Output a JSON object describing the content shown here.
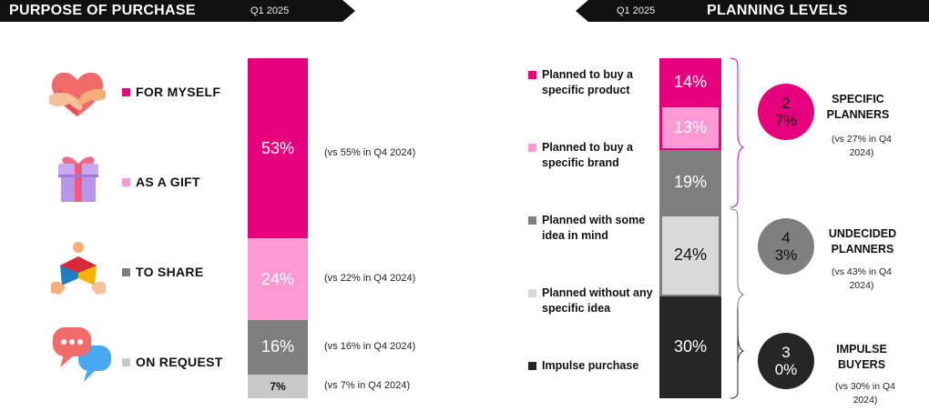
{
  "left_panel": {
    "title": "PURPOSE OF PURCHASE",
    "period": "Q1 2025"
  },
  "right_panel": {
    "title": "PLANNING LEVELS",
    "period": "Q1 2025"
  },
  "chart_data": [
    {
      "type": "bar",
      "stacked": true,
      "orientation": "vertical",
      "categories": [
        "FOR MYSELF",
        "AS A GIFT",
        "TO SHARE",
        "ON REQUEST"
      ],
      "values": [
        53,
        24,
        16,
        7
      ],
      "value_labels": [
        "53%",
        "24%",
        "16%",
        "7%"
      ],
      "comparisons": [
        "(vs 55% in Q4 2024)",
        "(vs 22% in Q4 2024)",
        "(vs 16% in Q4 2024)",
        "(vs 7% in Q4 2024)"
      ],
      "colors": [
        "#e6007e",
        "#ff99d6",
        "#7f7f7f",
        "#c8c8c8"
      ],
      "icons": [
        "heart-hands-icon",
        "gift-box-icon",
        "sharing-hands-icon",
        "chat-bubbles-icon"
      ]
    },
    {
      "type": "bar",
      "stacked": true,
      "orientation": "vertical",
      "categories": [
        "Planned to buy a specific product",
        "Planned to buy a specific brand",
        "Planned with some idea in mind",
        "Planned without any specific idea",
        "Impulse purchase"
      ],
      "values": [
        14,
        13,
        19,
        24,
        30
      ],
      "value_labels": [
        "14%",
        "13%",
        "19%",
        "24%",
        "30%"
      ],
      "colors": [
        "#e6007e",
        "#ff99d6",
        "#7f7f7f",
        "#d9d9d9",
        "#262626"
      ],
      "groups": [
        {
          "name": "SPECIFIC PLANNERS",
          "value_label": "27%",
          "comparison": "(vs 27% in Q4 2024)",
          "color": "#e6007e",
          "members": [
            0,
            1
          ]
        },
        {
          "name": "UNDECIDED PLANNERS",
          "value_label": "43%",
          "comparison": "(vs 43% in Q4 2024)",
          "color": "#7f7f7f",
          "members": [
            2,
            3
          ]
        },
        {
          "name": "IMPULSE BUYERS",
          "value_label": "30%",
          "comparison": "(vs 30% in Q4 2024)",
          "color": "#262626",
          "members": [
            4
          ]
        }
      ]
    }
  ]
}
